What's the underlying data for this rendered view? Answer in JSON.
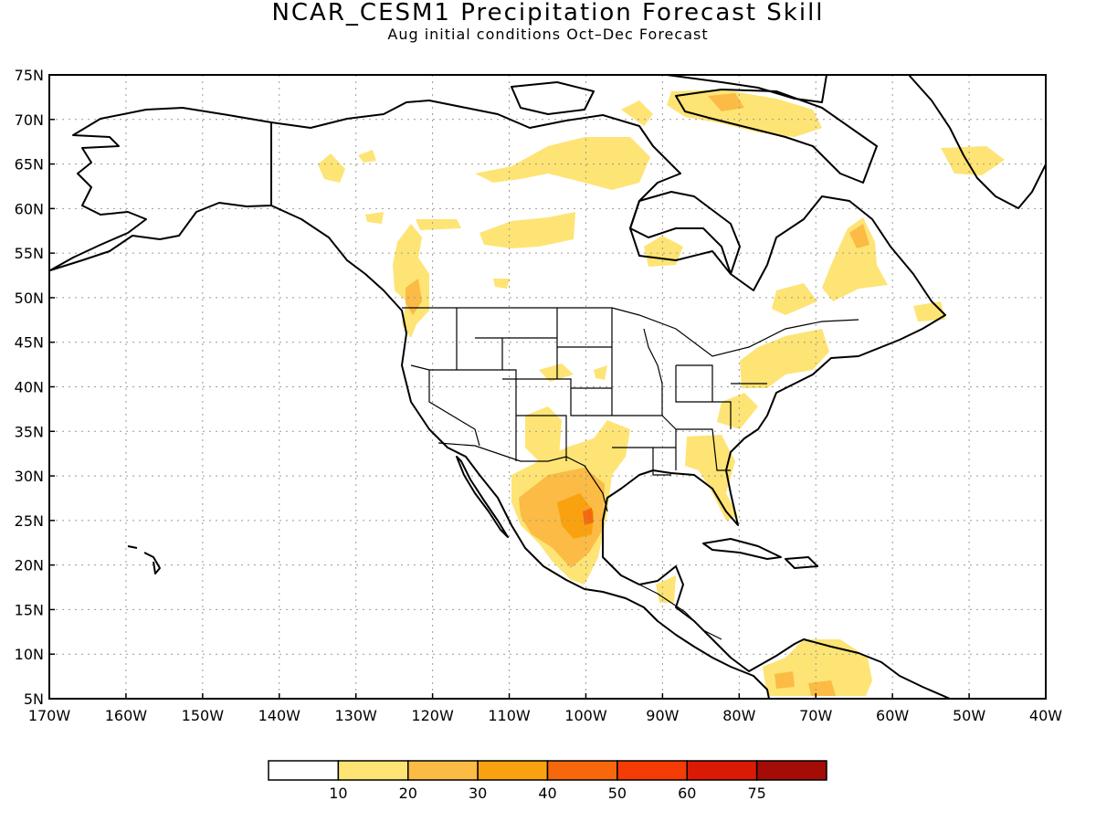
{
  "title": "NCAR_CESM1 Precipitation Forecast Skill",
  "subtitle": "Aug initial conditions   Oct–Dec Forecast",
  "map": {
    "lon_range": [
      -170,
      -40
    ],
    "lat_range": [
      5,
      75
    ],
    "lat_labels": [
      "75N",
      "70N",
      "65N",
      "60N",
      "55N",
      "50N",
      "45N",
      "40N",
      "35N",
      "30N",
      "25N",
      "20N",
      "15N",
      "10N",
      "5N"
    ],
    "lon_labels": [
      "170W",
      "160W",
      "150W",
      "140W",
      "130W",
      "120W",
      "110W",
      "100W",
      "90W",
      "80W",
      "70W",
      "60W",
      "50W",
      "40W"
    ],
    "gridlines": "dotted"
  },
  "colorbar": {
    "colors": [
      "#ffffff",
      "#fde475",
      "#fbbb45",
      "#faa10f",
      "#f7680d",
      "#f43c04",
      "#da1a04",
      "#a30d06"
    ],
    "labels": [
      "10",
      "20",
      "30",
      "40",
      "50",
      "60",
      "75"
    ]
  }
}
